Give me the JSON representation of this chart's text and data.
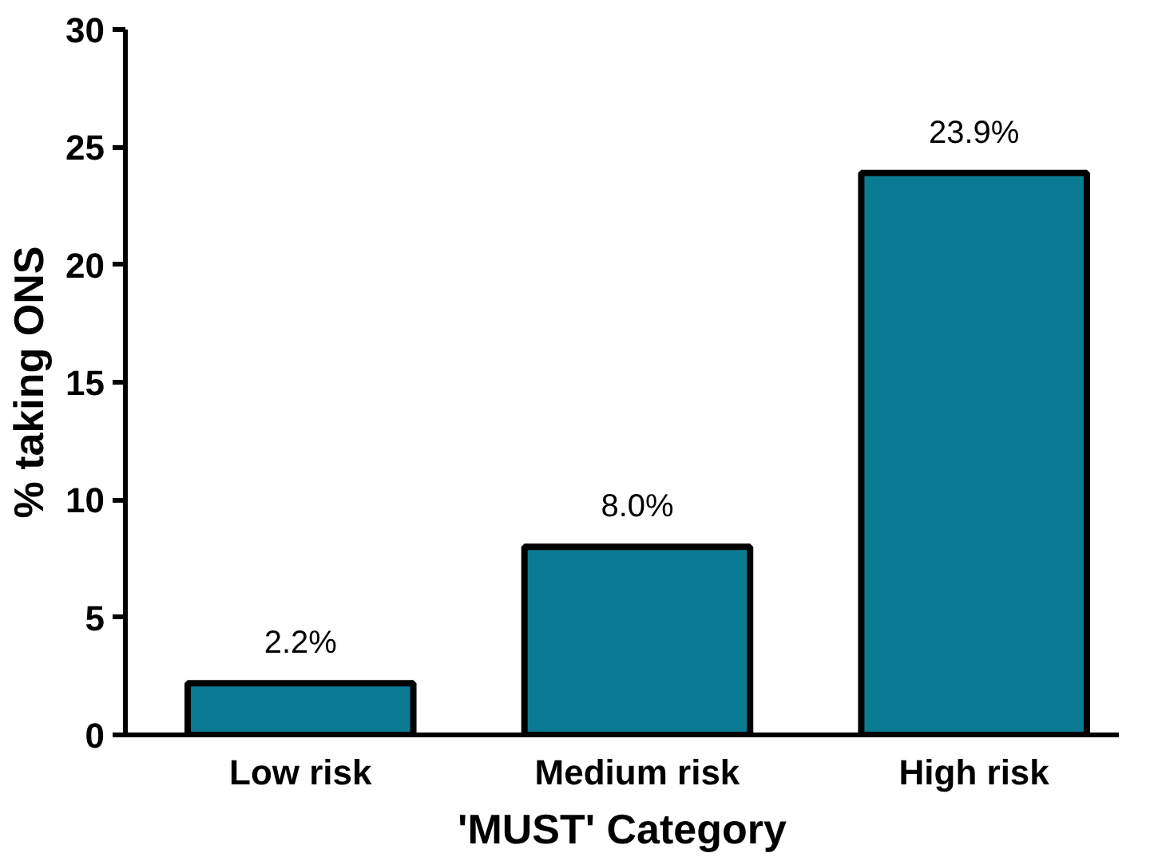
{
  "chart_data": {
    "type": "bar",
    "xlabel": "'MUST' Category",
    "ylabel": "% taking ONS",
    "categories": [
      "Low risk",
      "Medium risk",
      "High risk"
    ],
    "values": [
      2.2,
      8.0,
      23.9
    ],
    "color": "#0b7b93",
    "value_labels": [
      "2.2%",
      "8.0%",
      "23.9%"
    ],
    "ylim": [
      0,
      30
    ],
    "yticks": [
      0,
      5,
      10,
      15,
      20,
      25,
      30
    ],
    "grid": false
  }
}
